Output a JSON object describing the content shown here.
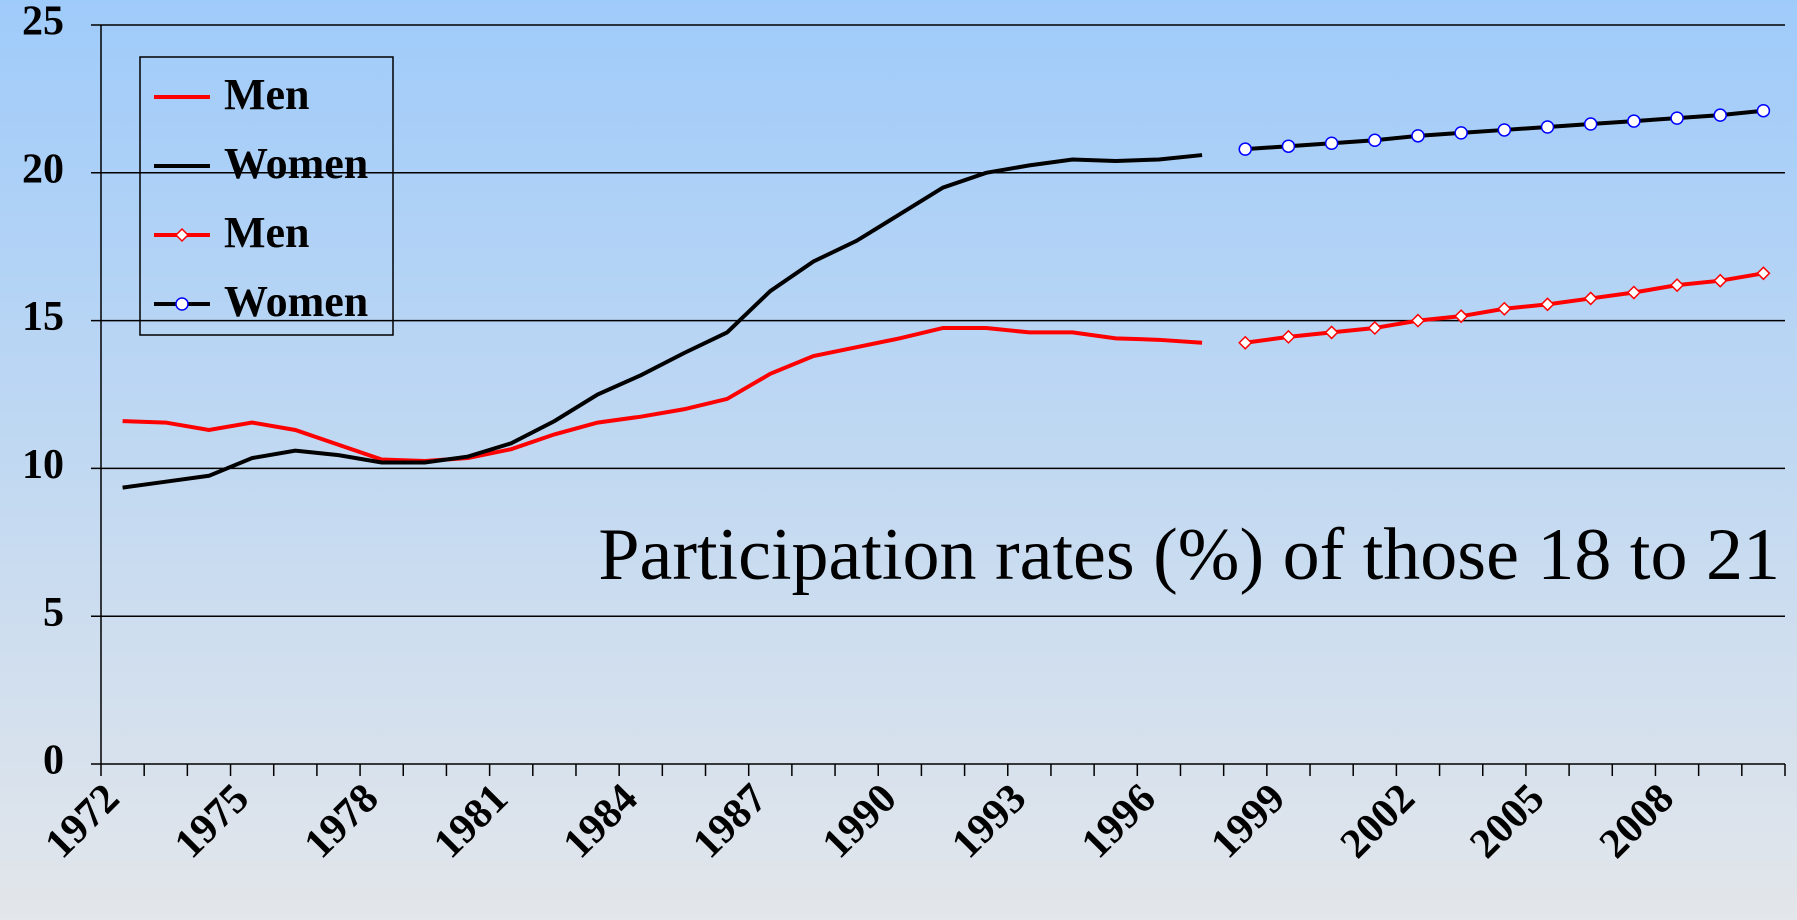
{
  "chart_data": {
    "type": "line",
    "annotation": "Participation rates (%) of those 18 to 21",
    "categories": [
      "1972",
      null,
      null,
      "1975",
      null,
      null,
      "1978",
      null,
      null,
      "1981",
      null,
      null,
      "1984",
      null,
      null,
      "1987",
      null,
      null,
      "1990",
      null,
      null,
      "1993",
      null,
      null,
      "1996",
      null,
      null,
      "1999",
      null,
      null,
      "2002",
      null,
      null,
      "2005",
      null,
      null,
      "2008",
      null,
      null
    ],
    "series": [
      {
        "name": "Men",
        "color": "#ff0000",
        "marker": null,
        "values": [
          11.6,
          11.55,
          11.3,
          11.55,
          11.3,
          10.8,
          10.3,
          10.25,
          10.35,
          10.65,
          11.15,
          11.55,
          11.75,
          12.0,
          12.35,
          13.2,
          13.8,
          14.1,
          14.4,
          14.75,
          14.75,
          14.6,
          14.6,
          14.4,
          14.35,
          14.25,
          null,
          null,
          null,
          null,
          null,
          null,
          null,
          null,
          null,
          null,
          null,
          null,
          null
        ]
      },
      {
        "name": "Women",
        "color": "#000000",
        "marker": null,
        "values": [
          9.35,
          9.55,
          9.75,
          10.35,
          10.6,
          10.45,
          10.2,
          10.2,
          10.4,
          10.85,
          11.6,
          12.5,
          13.15,
          13.9,
          14.6,
          16.0,
          17.0,
          17.7,
          18.6,
          19.5,
          20.0,
          20.25,
          20.45,
          20.4,
          20.45,
          20.6,
          null,
          null,
          null,
          null,
          null,
          null,
          null,
          null,
          null,
          null,
          null,
          null,
          null
        ]
      },
      {
        "name": "Men",
        "color": "#ff0000",
        "marker": "diamond",
        "marker_color": "#ff0000",
        "values": [
          null,
          null,
          null,
          null,
          null,
          null,
          null,
          null,
          null,
          null,
          null,
          null,
          null,
          null,
          null,
          null,
          null,
          null,
          null,
          null,
          null,
          null,
          null,
          null,
          null,
          null,
          14.25,
          14.45,
          14.6,
          14.75,
          15.0,
          15.15,
          15.4,
          15.55,
          15.75,
          15.95,
          16.2,
          16.35,
          16.6
        ]
      },
      {
        "name": "Women",
        "color": "#000000",
        "marker": "circle",
        "marker_color": "#0000ff",
        "values": [
          null,
          null,
          null,
          null,
          null,
          null,
          null,
          null,
          null,
          null,
          null,
          null,
          null,
          null,
          null,
          null,
          null,
          null,
          null,
          null,
          null,
          null,
          null,
          null,
          null,
          null,
          20.8,
          20.9,
          21.0,
          21.1,
          21.25,
          21.35,
          21.45,
          21.55,
          21.65,
          21.75,
          21.85,
          21.95,
          22.1
        ]
      }
    ],
    "ylim": [
      0,
      25
    ],
    "yticks": [
      0,
      5,
      10,
      15,
      20,
      25
    ],
    "grid": true,
    "legend": "upper left"
  }
}
